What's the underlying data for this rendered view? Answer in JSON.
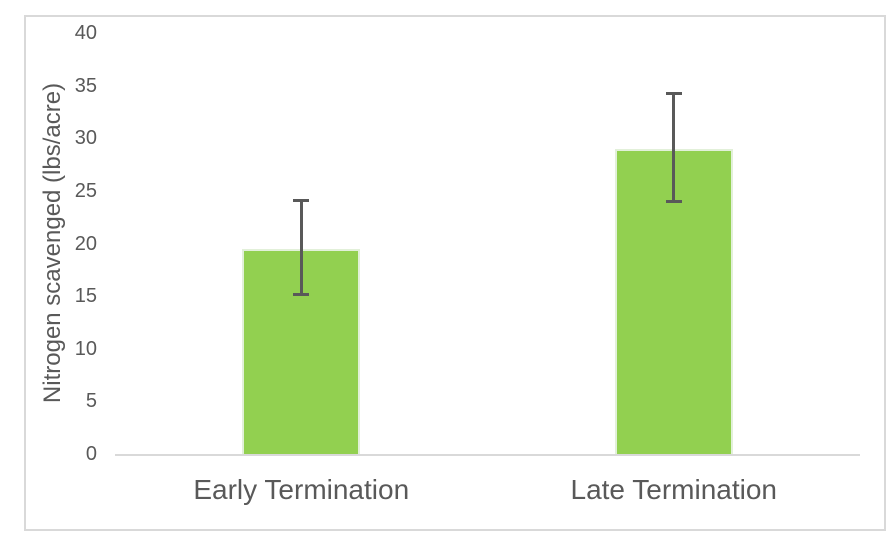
{
  "chart_data": {
    "type": "bar",
    "title": "",
    "xlabel": "",
    "ylabel": "Nitrogen scavenged (lbs/acre)",
    "categories": [
      "Early Termination",
      "Late Termination"
    ],
    "values": [
      19.5,
      29
    ],
    "error_bars": [
      {
        "low": 15.1,
        "high": 24.1
      },
      {
        "low": 23.9,
        "high": 34.3
      }
    ],
    "ylim": [
      0,
      40
    ],
    "yticks": [
      0,
      5,
      10,
      15,
      20,
      25,
      30,
      35,
      40
    ],
    "grid": false,
    "legend": "none",
    "bar_width_ratio": 0.317,
    "colors": {
      "bar": "#92D050",
      "bar_edge": "#E2F0D9",
      "error": "#595959",
      "axis": "#D9D9D9",
      "text": "#595959",
      "frame_border": "#D9D9D9"
    }
  }
}
